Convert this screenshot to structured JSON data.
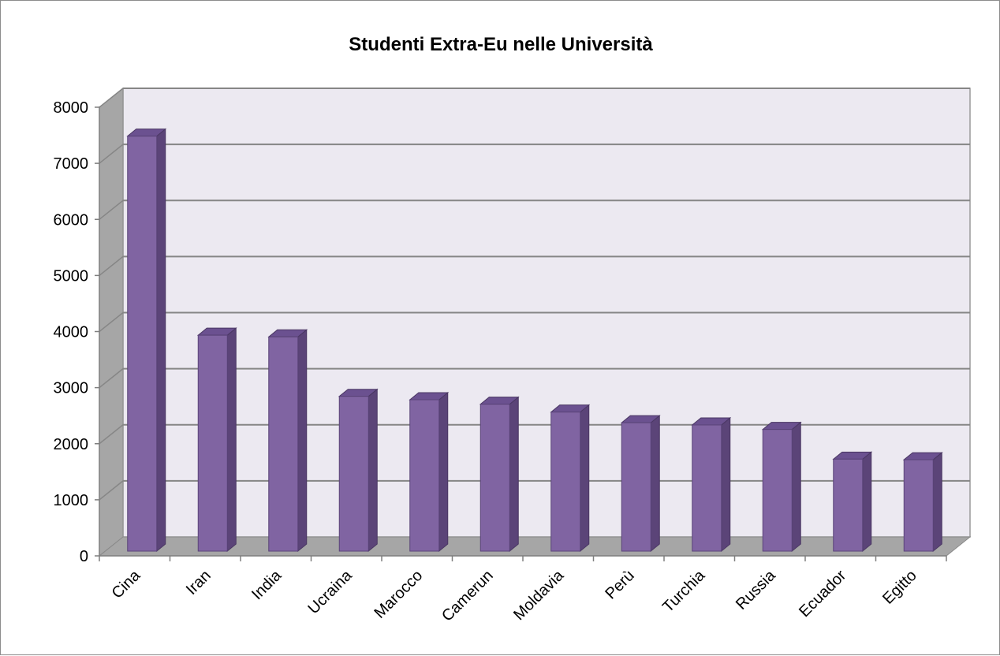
{
  "chart_data": {
    "type": "bar",
    "style": "3d-column",
    "title": "Studenti Extra-Eu nelle Università",
    "xlabel": "",
    "ylabel": "",
    "categories": [
      "Cina",
      "Iran",
      "India",
      "Ucraina",
      "Marocco",
      "Camerun",
      "Moldavia",
      "Perù",
      "Turchia",
      "Russia",
      "Ecuador",
      "Egitto"
    ],
    "series": [
      {
        "values": [
          7400,
          3850,
          3820,
          2760,
          2700,
          2620,
          2480,
          2290,
          2250,
          2170,
          1640,
          1630
        ]
      }
    ],
    "ylim": [
      0,
      8000
    ],
    "yticks": [
      0,
      1000,
      2000,
      3000,
      4000,
      5000,
      6000,
      7000,
      8000
    ],
    "grid": true,
    "legend": "none",
    "colors": {
      "bar_front": "#8064a2",
      "bar_side": "#5b4478",
      "bar_top": "#6b5190",
      "wall": "#ece9f1",
      "side_wall": "#a6a6a6",
      "floor": "#a6a6a6",
      "gridline": "#868686"
    }
  }
}
